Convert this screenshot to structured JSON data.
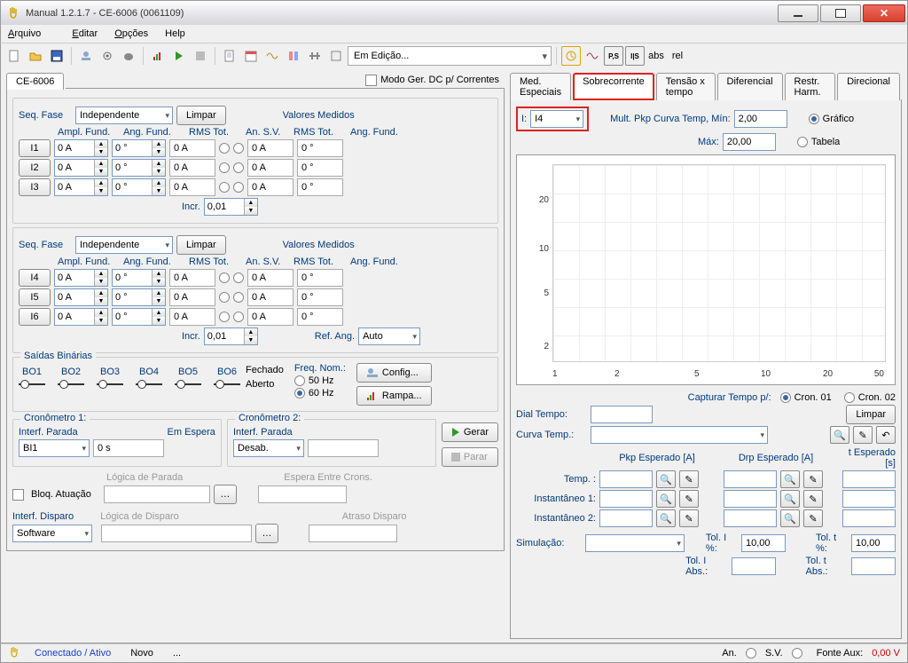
{
  "title": "Manual 1.2.1.7 - CE-6006 (0061109)",
  "menu": {
    "arquivo": "Arquivo",
    "editar": "Editar",
    "opcoes": "Opções",
    "help": "Help"
  },
  "toolbar": {
    "edit_state": "Em Edição...",
    "abs": "abs",
    "rel": "rel",
    "ps_label": "P,S",
    "is_label": "I|S"
  },
  "left": {
    "maintab": "CE-6006",
    "modo_dc": "Modo Ger. DC p/ Correntes",
    "seq_fase_label": "Seq. Fase",
    "seq_fase_value": "Independente",
    "limpar": "Limpar",
    "valores_medidos": "Valores Medidos",
    "cols": {
      "ampl": "Ampl. Fund.",
      "ang": "Ang. Fund.",
      "rms": "RMS Tot.",
      "ansv": "An. S.V.",
      "rms2": "RMS Tot.",
      "angf": "Ang. Fund."
    },
    "channels1": [
      {
        "name": "I1",
        "ampl": "0 A",
        "ang": "0 °",
        "rms": "0 A",
        "rms2": "0 A",
        "angf": "0 °"
      },
      {
        "name": "I2",
        "ampl": "0 A",
        "ang": "0 °",
        "rms": "0 A",
        "rms2": "0 A",
        "angf": "0 °"
      },
      {
        "name": "I3",
        "ampl": "0 A",
        "ang": "0 °",
        "rms": "0 A",
        "rms2": "0 A",
        "angf": "0 °"
      }
    ],
    "channels2": [
      {
        "name": "I4",
        "ampl": "0 A",
        "ang": "0 °",
        "rms": "0 A",
        "rms2": "0 A",
        "angf": "0 °"
      },
      {
        "name": "I5",
        "ampl": "0 A",
        "ang": "0 °",
        "rms": "0 A",
        "rms2": "0 A",
        "angf": "0 °"
      },
      {
        "name": "I6",
        "ampl": "0 A",
        "ang": "0 °",
        "rms": "0 A",
        "rms2": "0 A",
        "angf": "0 °"
      }
    ],
    "incr_label": "Incr.",
    "incr_val": "0,01",
    "ref_ang_label": "Ref. Ang.",
    "ref_ang_val": "Auto",
    "saidas_binarias": {
      "title": "Saídas Binárias",
      "items": [
        "BO1",
        "BO2",
        "BO3",
        "BO4",
        "BO5",
        "BO6"
      ],
      "fechado": "Fechado",
      "aberto": "Aberto"
    },
    "freq_nom_label": "Freq. Nom.:",
    "freq_50": "50 Hz",
    "freq_60": "60 Hz",
    "btn_config": "Config...",
    "btn_rampa": "Rampa...",
    "btn_gerar": "Gerar",
    "btn_parar": "Parar",
    "cron1": {
      "title": "Cronômetro 1:",
      "interf": "Interf. Parada",
      "emespera": "Em Espera",
      "bi1": "BI1",
      "zero": "0 s",
      "logica_parada": "Lógica de Parada",
      "bloq": "Bloq. Atuação",
      "espera": "Espera Entre Crons."
    },
    "cron2": {
      "title": "Cronômetro 2:",
      "interf": "Interf. Parada",
      "desab": "Desab."
    },
    "interf_disparo": {
      "label": "Interf. Disparo",
      "val": "Software",
      "logica": "Lógica de Disparo",
      "atraso": "Atraso Disparo"
    }
  },
  "right": {
    "tabs": [
      "Med. Especiais",
      "Sobrecorrente",
      "Tensão x tempo",
      "Diferencial",
      "Restr. Harm.",
      "Direcional"
    ],
    "i_label": "I:",
    "i_val": "I4",
    "mult_pkp_label": "Mult. Pkp Curva Temp, Mín:",
    "mult_pkp_min": "2,00",
    "max_label": "Máx:",
    "mult_pkp_max": "20,00",
    "grafico": "Gráfico",
    "tabela": "Tabela",
    "chart": {
      "y_ticks": [
        "20",
        "10",
        "5",
        "2"
      ],
      "x_ticks": [
        "1",
        "2",
        "5",
        "10",
        "20",
        "50"
      ],
      "xlim": [
        1,
        50
      ],
      "ylim": [
        1,
        50
      ],
      "xscale": "log",
      "yscale": "log",
      "bg": "#ffffff",
      "grid_color": "#eeeeee"
    },
    "capturar": "Capturar Tempo p/:",
    "cron01": "Cron. 01",
    "cron02": "Cron. 02",
    "dial_tempo": "Dial Tempo:",
    "curva_temp": "Curva Temp.:",
    "limpar": "Limpar",
    "pkp_esperado": "Pkp Esperado [A]",
    "drp_esperado": "Drp Esperado [A]",
    "t_esperado": "t Esperado [s]",
    "temp": "Temp. :",
    "inst1": "Instantâneo 1:",
    "inst2": "Instantâneo 2:",
    "simulacao": "Simulação:",
    "tol_i_pct": "Tol. I %:",
    "tol_i_pct_v": "10,00",
    "tol_t_pct": "Tol. t %:",
    "tol_t_pct_v": "10,00",
    "tol_i_abs": "Tol. I Abs.:",
    "tol_t_abs": "Tol. t Abs.:"
  },
  "status": {
    "conectado": "Conectado / Ativo",
    "novo": "Novo",
    "dots": "...",
    "an": "An.",
    "sv": "S.V.",
    "fonte": "Fonte Aux:",
    "val": "0,00 V"
  }
}
